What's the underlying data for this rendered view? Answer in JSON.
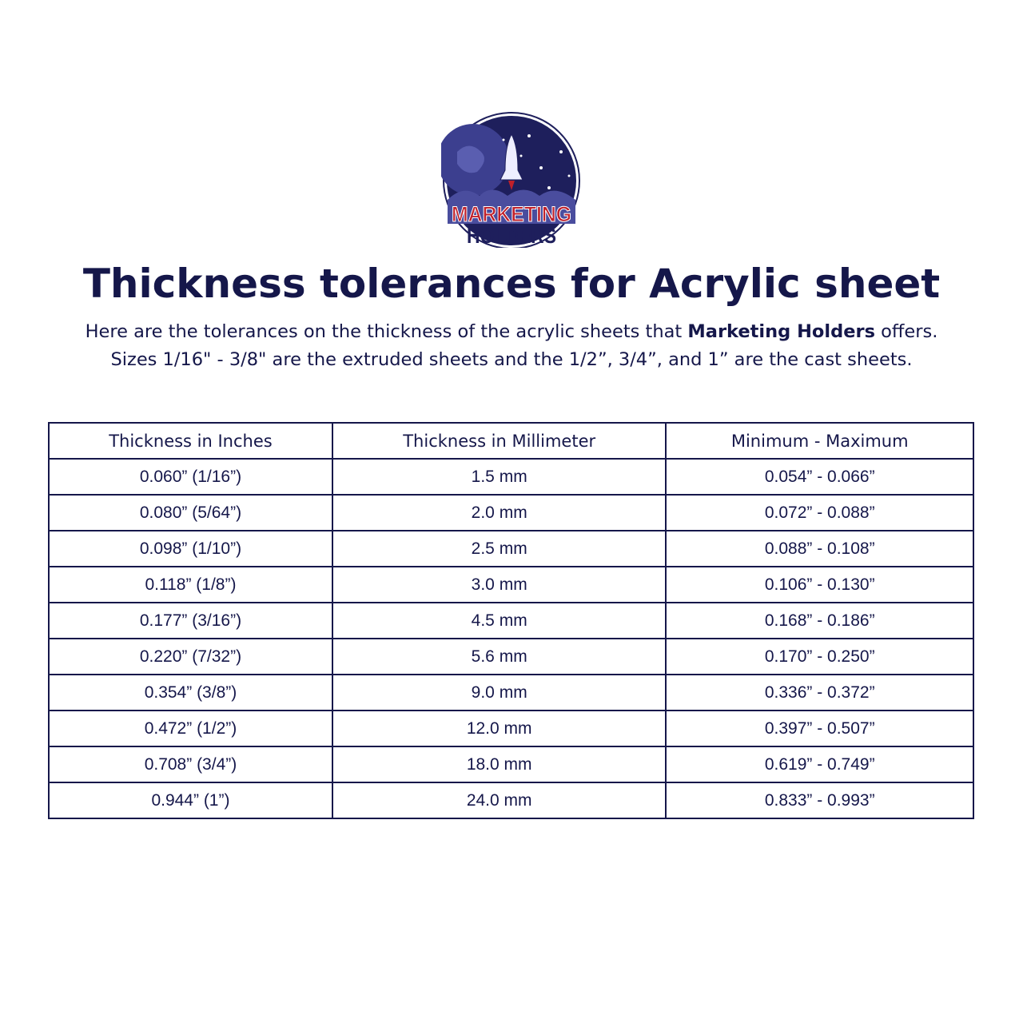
{
  "logo": {
    "line1": "MARKETING",
    "line2": "HOLDERS",
    "colors": {
      "navy": "#1e1f5c",
      "red": "#c0202a"
    }
  },
  "title": "Thickness tolerances for Acrylic sheet",
  "intro": {
    "line1_before": "Here are the tolerances on the thickness of the acrylic sheets that ",
    "line1_bold": "Marketing Holders",
    "line1_after": " offers.",
    "line2": "Sizes 1/16\" - 3/8\" are the extruded sheets and the 1/2”, 3/4”, and 1” are the cast sheets."
  },
  "table": {
    "headers": [
      "Thickness in Inches",
      "Thickness in Millimeter",
      "Minimum - Maximum"
    ],
    "rows": [
      [
        "0.060” (1/16”)",
        "1.5 mm",
        "0.054” - 0.066”"
      ],
      [
        "0.080” (5/64”)",
        "2.0 mm",
        "0.072” - 0.088”"
      ],
      [
        "0.098” (1/10”)",
        "2.5 mm",
        "0.088” - 0.108”"
      ],
      [
        "0.118” (1/8”)",
        "3.0 mm",
        "0.106” - 0.130”"
      ],
      [
        "0.177” (3/16”)",
        "4.5 mm",
        "0.168” - 0.186”"
      ],
      [
        "0.220” (7/32”)",
        "5.6 mm",
        "0.170” - 0.250”"
      ],
      [
        "0.354” (3/8”)",
        "9.0 mm",
        "0.336” - 0.372”"
      ],
      [
        "0.472” (1/2”)",
        "12.0 mm",
        "0.397” - 0.507”"
      ],
      [
        "0.708” (3/4”)",
        "18.0 mm",
        "0.619” - 0.749”"
      ],
      [
        "0.944” (1”)",
        "24.0 mm",
        "0.833” - 0.993”"
      ]
    ]
  }
}
